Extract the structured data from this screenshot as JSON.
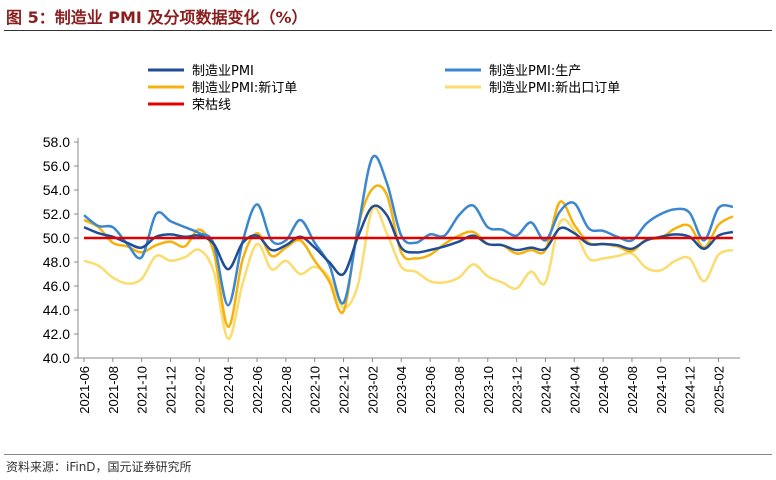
{
  "title": "图 5：制造业 PMI 及分项数据变化（%）",
  "source": "资料来源：iFinD，国元证券研究所",
  "chart_data": {
    "type": "line",
    "title": "制造业 PMI 及分项数据变化（%）",
    "ylim": [
      40,
      58
    ],
    "yticks": [
      "40.0",
      "42.0",
      "44.0",
      "46.0",
      "48.0",
      "50.0",
      "52.0",
      "54.0",
      "56.0",
      "58.0"
    ],
    "xticks": [
      "2021-06",
      "2021-08",
      "2021-10",
      "2021-12",
      "2022-02",
      "2022-04",
      "2022-06",
      "2022-08",
      "2022-10",
      "2022-12",
      "2023-02",
      "2023-04",
      "2023-06",
      "2023-08",
      "2023-10",
      "2023-12",
      "2024-02",
      "2024-04",
      "2024-06",
      "2024-08",
      "2024-10",
      "2024-12",
      "2025-02"
    ],
    "start": "2021-06",
    "end": "2025-03",
    "legend_position": "top",
    "series": [
      {
        "name": "制造业PMI",
        "color": "#1f4e96",
        "width": 2.5,
        "values": [
          50.9,
          50.4,
          50.1,
          49.6,
          49.2,
          50.1,
          50.3,
          50.1,
          50.2,
          49.5,
          47.4,
          49.6,
          50.2,
          49.0,
          49.4,
          50.1,
          49.2,
          48.0,
          47.0,
          50.1,
          52.6,
          51.9,
          49.2,
          48.8,
          49.0,
          49.3,
          49.7,
          50.2,
          49.5,
          49.4,
          49.0,
          49.2,
          49.1,
          50.8,
          50.4,
          49.5,
          49.5,
          49.4,
          49.1,
          49.8,
          50.1,
          50.3,
          50.1,
          49.1,
          50.2,
          50.5
        ]
      },
      {
        "name": "制造业PMI:生产",
        "color": "#3a87d0",
        "width": 2.5,
        "values": [
          51.9,
          51.0,
          50.9,
          49.5,
          48.4,
          52.0,
          51.4,
          50.9,
          50.4,
          49.5,
          44.4,
          49.7,
          52.8,
          49.8,
          49.8,
          51.5,
          49.6,
          47.8,
          44.6,
          50.8,
          56.7,
          54.6,
          50.2,
          49.6,
          50.3,
          50.2,
          51.9,
          52.7,
          50.9,
          50.7,
          50.2,
          51.3,
          49.8,
          52.2,
          52.9,
          50.8,
          50.6,
          50.1,
          49.8,
          51.2,
          52.0,
          52.4,
          52.1,
          49.8,
          52.5,
          52.6
        ]
      },
      {
        "name": "制造业PMI:新订单",
        "color": "#f5b20f",
        "width": 2.5,
        "values": [
          51.5,
          50.9,
          49.6,
          49.3,
          48.8,
          49.4,
          49.7,
          49.3,
          50.7,
          48.8,
          42.6,
          48.2,
          50.4,
          48.5,
          49.2,
          49.8,
          48.1,
          46.4,
          43.9,
          50.9,
          54.1,
          53.6,
          48.8,
          48.3,
          48.6,
          49.5,
          50.2,
          50.5,
          49.5,
          49.4,
          48.7,
          49.0,
          49.0,
          53.0,
          51.1,
          49.6,
          49.5,
          49.3,
          48.9,
          49.9,
          50.0,
          50.8,
          51.0,
          49.2,
          51.1,
          51.8
        ]
      },
      {
        "name": "制造业PMI:新出口订单",
        "color": "#fbdc6e",
        "width": 2.5,
        "values": [
          48.1,
          47.7,
          46.7,
          46.2,
          46.6,
          48.5,
          48.1,
          48.4,
          49.0,
          47.2,
          41.6,
          46.2,
          49.5,
          47.4,
          48.1,
          47.0,
          47.6,
          46.7,
          44.2,
          46.1,
          52.4,
          50.4,
          47.6,
          47.2,
          46.4,
          46.3,
          46.7,
          47.8,
          46.8,
          46.3,
          45.8,
          47.2,
          46.3,
          51.3,
          50.6,
          48.3,
          48.3,
          48.5,
          48.7,
          47.5,
          47.3,
          48.1,
          48.3,
          46.4,
          48.6,
          49.0
        ]
      },
      {
        "name": "荣枯线",
        "color": "#e00000",
        "width": 2.5,
        "values": [
          50,
          50,
          50,
          50,
          50,
          50,
          50,
          50,
          50,
          50,
          50,
          50,
          50,
          50,
          50,
          50,
          50,
          50,
          50,
          50,
          50,
          50,
          50,
          50,
          50,
          50,
          50,
          50,
          50,
          50,
          50,
          50,
          50,
          50,
          50,
          50,
          50,
          50,
          50,
          50,
          50,
          50,
          50,
          50,
          50,
          50
        ]
      }
    ]
  }
}
